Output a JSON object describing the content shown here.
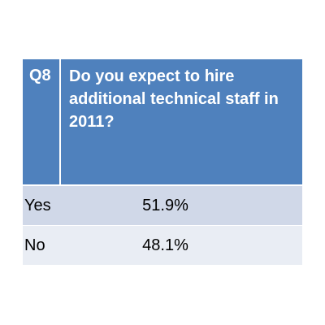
{
  "chart_data": {
    "type": "table",
    "question_number": "Q8",
    "question": "Do you expect to hire additional technical staff in 2011?",
    "rows": [
      {
        "label": "Yes",
        "value": "51.9%",
        "numeric": 51.9
      },
      {
        "label": "No",
        "value": "48.1%",
        "numeric": 48.1
      }
    ],
    "colors": {
      "header_bg": "#4f81bd",
      "row_odd_bg": "#d0d8e8",
      "row_even_bg": "#e9edf4",
      "header_text": "#ffffff"
    }
  }
}
